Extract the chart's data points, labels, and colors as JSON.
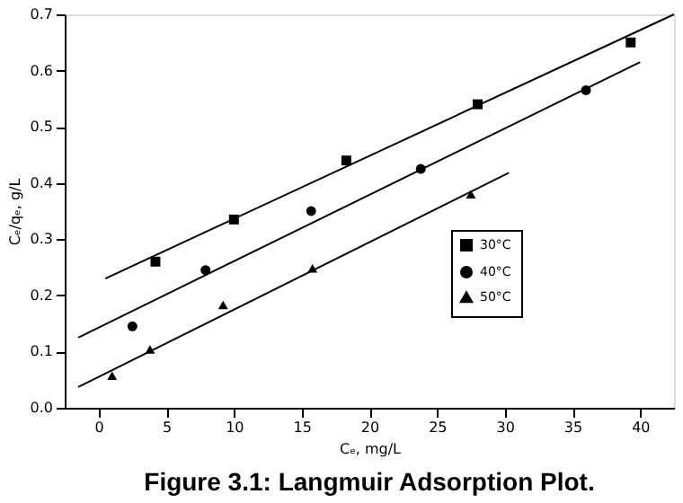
{
  "chart_data": {
    "type": "scatter",
    "title": "Figure 3.1: Langmuir Adsorption Plot.",
    "xlabel": "Cₑ, mg/L",
    "ylabel": "Cₑ/qₑ, g/L",
    "xlim": [
      -2.5,
      42.5
    ],
    "xticks": [
      0,
      5,
      10,
      15,
      20,
      25,
      30,
      35,
      40
    ],
    "ylim": [
      0,
      0.7
    ],
    "yticks": [
      {
        "value": 0,
        "label": "0.0"
      },
      0.1,
      0.2,
      0.3,
      0.4,
      0.5,
      0.6,
      0.7
    ],
    "legend": "right",
    "grid": false,
    "series": [
      {
        "name": "30°C",
        "color": "#000000",
        "marker": "square",
        "x": [
          4.2,
          10,
          18.3,
          28,
          39.3
        ],
        "values": [
          0.26,
          0.335,
          0.44,
          0.54,
          0.65
        ]
      },
      {
        "name": "40°C",
        "color": "#000000",
        "marker": "circle",
        "x": [
          2.5,
          7.9,
          15.7,
          23.8,
          36
        ],
        "values": [
          0.145,
          0.245,
          0.35,
          0.425,
          0.565
        ]
      },
      {
        "name": "50°C",
        "color": "#000000",
        "marker": "triangle",
        "x": [
          1,
          3.8,
          9.2,
          15.8,
          27.5
        ],
        "values": [
          0.057,
          0.104,
          0.183,
          0.248,
          0.38
        ]
      },
      {
        "type": "line",
        "color": "#000000",
        "x": [
          0.5,
          42.5
        ],
        "values": [
          0.23,
          0.7
        ]
      },
      {
        "type": "line",
        "color": "#000000",
        "x": [
          -1.5,
          40
        ],
        "values": [
          0.125,
          0.615
        ]
      },
      {
        "type": "line",
        "color": "#000000",
        "x": [
          -1.5,
          30.3
        ],
        "values": [
          0.037,
          0.418
        ]
      }
    ]
  }
}
